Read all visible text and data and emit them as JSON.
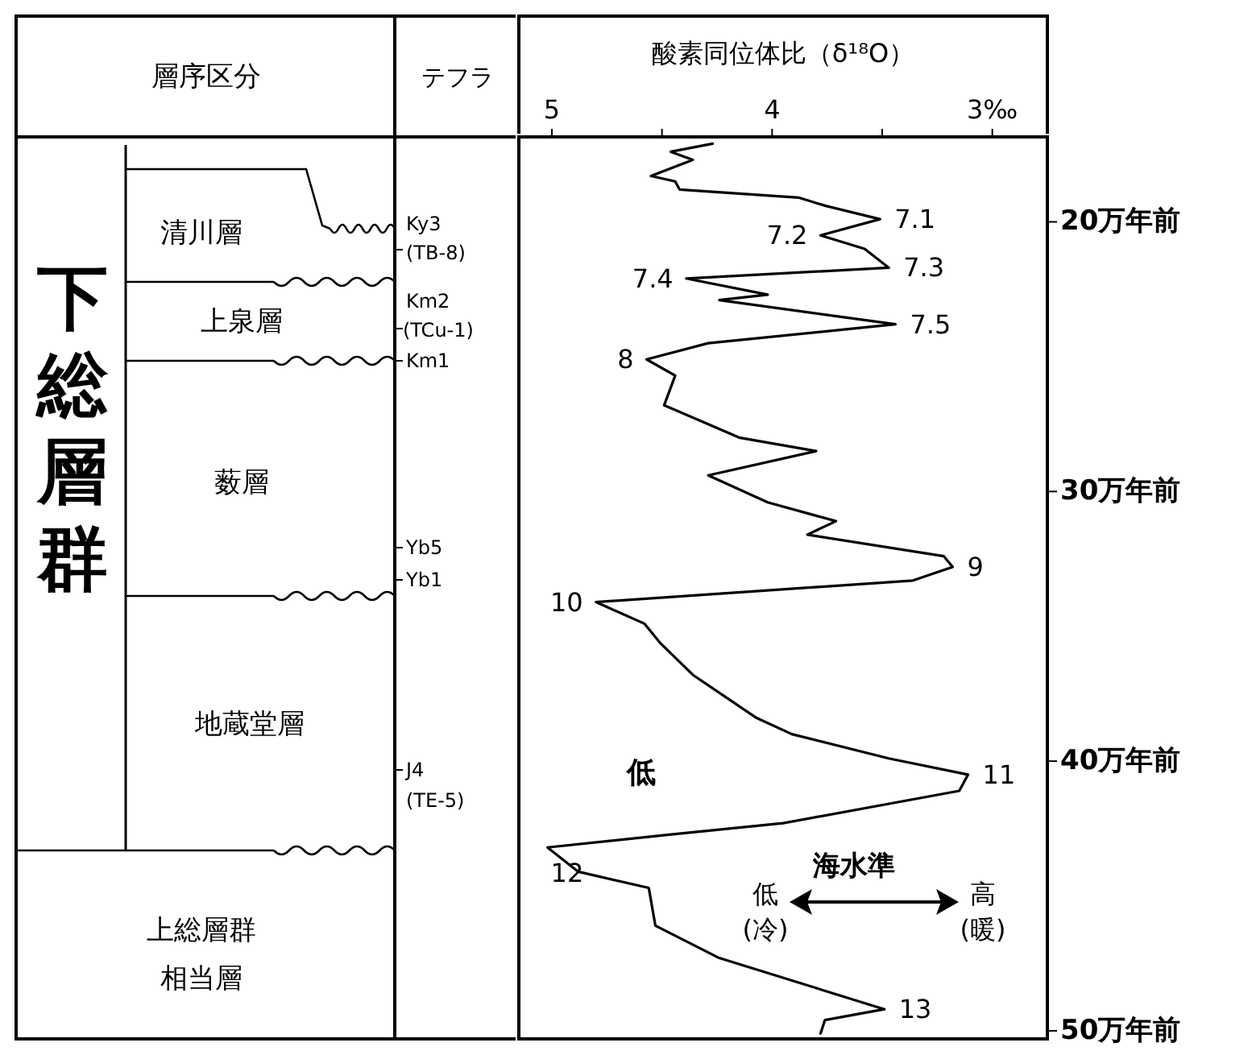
{
  "chart_data": [
    {
      "type": "other",
      "annotations": [
        "層序区分",
        "テフラ",
        "下総層群",
        "清川層",
        "上泉層",
        "薮層",
        "地蔵堂層",
        "上総層群",
        "相当層",
        "Ky3",
        "(TB-8)",
        "Km2",
        "(TCu-1)",
        "Km1",
        "Yb5",
        "Yb1",
        "J4",
        "(TE-5)"
      ]
    },
    {
      "type": "line",
      "xlabel": "酸素同位体比（δ¹⁸O）",
      "xlim": [
        5.15,
        2.75
      ],
      "xticks": [
        5,
        {
          "value": 4.5,
          "label": null
        },
        4,
        {
          "value": 3.5,
          "label": null
        },
        {
          "value": 3,
          "label": "3‰"
        }
      ],
      "ylim": [
        50.3,
        16.85
      ],
      "yticks": [
        {
          "value": 20,
          "label": "20万年前"
        },
        {
          "value": 30,
          "label": "30万年前"
        },
        {
          "value": 40,
          "label": "40万年前"
        },
        {
          "value": 50,
          "label": "50万年前"
        }
      ],
      "grid": false,
      "marker": "none",
      "line_style": "solid",
      "series": [
        {
          "color": "#000000",
          "x": [
            4.27,
            4.46,
            4.36,
            4.55,
            4.44,
            4.42,
            3.88,
            3.76,
            3.51,
            3.78,
            3.58,
            3.47,
            4.39,
            4.02,
            4.24,
            3.44,
            4.29,
            4.57,
            4.44,
            4.49,
            4.15,
            3.8,
            4.29,
            4.02,
            3.71,
            3.84,
            3.22,
            3.18,
            3.36,
            4.8,
            4.58,
            4.51,
            4.36,
            4.07,
            3.91,
            3.47,
            3.11,
            3.15,
            3.95,
            4.44,
            5.02,
            4.88,
            4.56,
            4.53,
            4.24,
            3.49,
            3.76,
            3.78
          ],
          "values": [
            17.1,
            17.4,
            17.7,
            18.3,
            18.5,
            18.8,
            19.1,
            19.4,
            19.9,
            20.5,
            21.0,
            21.7,
            22.1,
            22.7,
            22.9,
            23.8,
            24.5,
            25.1,
            25.7,
            26.8,
            28.0,
            28.5,
            29.4,
            30.4,
            31.1,
            31.6,
            32.4,
            32.8,
            33.3,
            34.1,
            34.9,
            35.6,
            36.8,
            38.4,
            39.0,
            39.9,
            40.5,
            41.1,
            42.3,
            42.7,
            43.2,
            44.1,
            44.7,
            46.1,
            47.3,
            49.2,
            49.6,
            50.1
          ]
        }
      ],
      "annotations": [
        {
          "text": "7.1",
          "x": 3.51,
          "y": 19.9
        },
        {
          "text": "7.2",
          "x": 3.78,
          "y": 20.5
        },
        {
          "text": "7.3",
          "x": 3.47,
          "y": 21.7
        },
        {
          "text": "7.4",
          "x": 4.39,
          "y": 22.1
        },
        {
          "text": "7.5",
          "x": 3.44,
          "y": 23.8
        },
        {
          "text": "8",
          "x": 4.57,
          "y": 25.1
        },
        {
          "text": "9",
          "x": 3.18,
          "y": 32.8
        },
        {
          "text": "10",
          "x": 4.8,
          "y": 34.1
        },
        {
          "text": "11",
          "x": 3.11,
          "y": 40.5
        },
        {
          "text": "12",
          "x": 5.02,
          "y": 43.2
        },
        {
          "text": "13",
          "x": 3.49,
          "y": 49.2
        },
        "低",
        "海水準",
        "低",
        "(冷)",
        "高",
        "(暖)"
      ]
    }
  ]
}
